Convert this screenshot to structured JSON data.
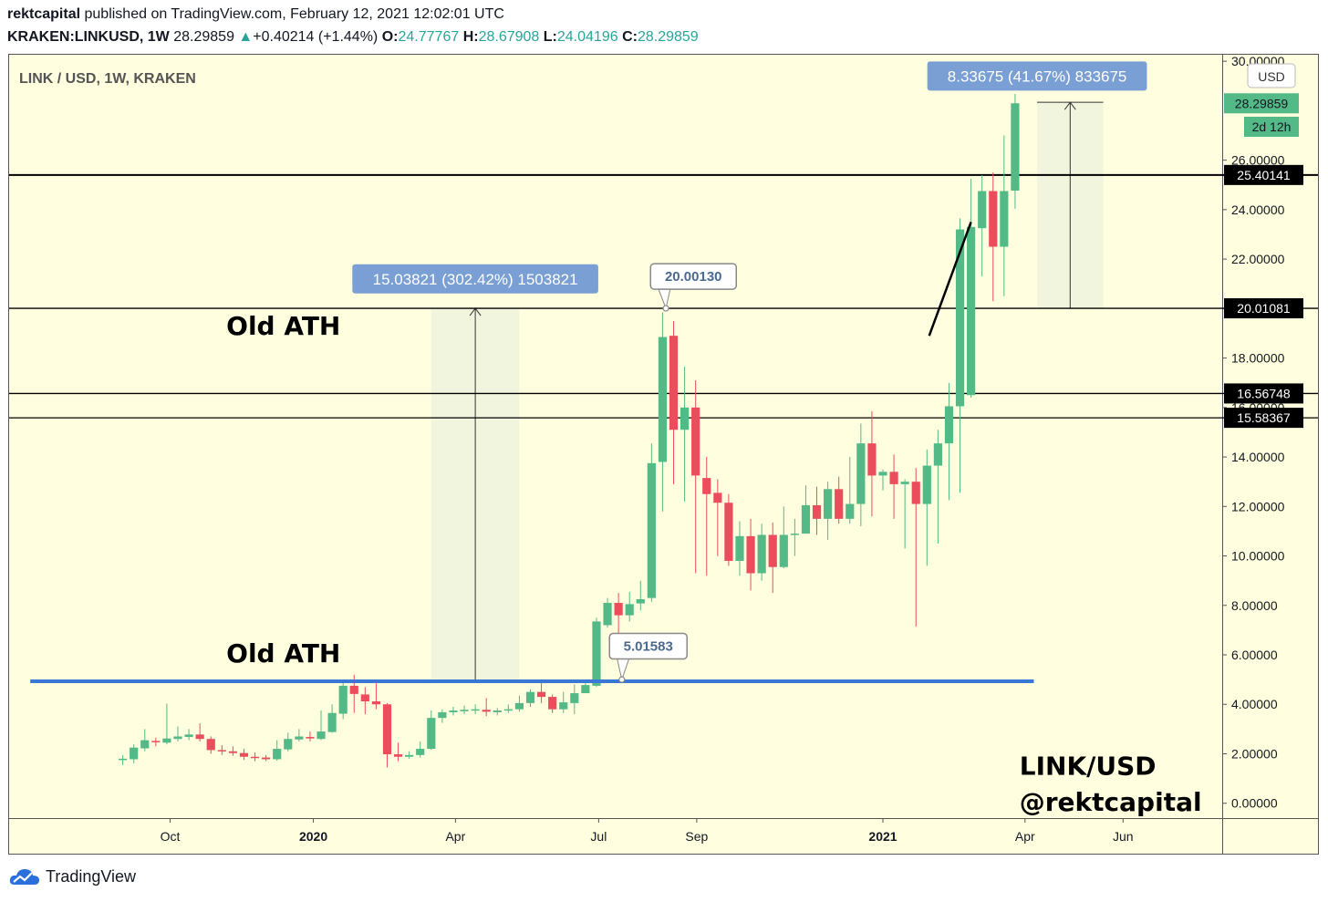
{
  "header": {
    "publisher": "rektcapital",
    "published_text": "published on TradingView.com, February 12, 2021 12:02:01 UTC",
    "symbol": "KRAKEN:LINKUSD, 1W",
    "last": "28.29859",
    "change_arrow": "▲",
    "change": "+0.40214 (+1.44%)",
    "o_label": "O:",
    "o": "24.77767",
    "h_label": "H:",
    "h": "28.67908",
    "l_label": "L:",
    "l": "24.04196",
    "c_label": "C:",
    "c": "28.29859"
  },
  "footer": {
    "brand": "TradingView",
    "icon": "tradingview-cloud-icon"
  },
  "chart_data": {
    "type": "candlestick",
    "pane_title": "LINK / USD, 1W, KRAKEN",
    "currency": "USD",
    "y_ticks": [
      "0.00000",
      "2.00000",
      "4.00000",
      "6.00000",
      "8.00000",
      "10.00000",
      "12.00000",
      "14.00000",
      "16.00000",
      "18.00000",
      "20.00000",
      "22.00000",
      "24.00000",
      "26.00000",
      "30.00000"
    ],
    "y_range": [
      -0.6,
      30.3
    ],
    "x_ticks": [
      {
        "label": "Oct",
        "t": 4.3,
        "bold": false
      },
      {
        "label": "2020",
        "t": 17.3,
        "bold": true
      },
      {
        "label": "Apr",
        "t": 30.2,
        "bold": false
      },
      {
        "label": "Jul",
        "t": 43.2,
        "bold": false
      },
      {
        "label": "Sep",
        "t": 52.1,
        "bold": false
      },
      {
        "label": "2021",
        "t": 69.0,
        "bold": true
      },
      {
        "label": "Apr",
        "t": 81.9,
        "bold": false
      },
      {
        "label": "Jun",
        "t": 90.8,
        "bold": false
      }
    ],
    "x_range": [
      -10.4,
      99.8
    ],
    "colors": {
      "up": "#53b987",
      "down": "#eb4d5c",
      "background": "#ffffe0",
      "hline": "#000000",
      "blue_line": "#3a78d6",
      "label_box": "#7a9fd4"
    },
    "candles": [
      [
        1.78,
        1.8,
        1.95,
        1.55
      ],
      [
        1.78,
        2.25,
        2.38,
        1.62
      ],
      [
        2.22,
        2.55,
        3.0,
        2.1
      ],
      [
        2.52,
        2.48,
        2.65,
        2.3
      ],
      [
        2.45,
        2.62,
        4.03,
        2.38
      ],
      [
        2.6,
        2.7,
        3.1,
        2.5
      ],
      [
        2.68,
        2.78,
        3.0,
        2.55
      ],
      [
        2.78,
        2.6,
        3.23,
        2.5
      ],
      [
        2.6,
        2.15,
        2.7,
        2.0
      ],
      [
        2.15,
        2.1,
        2.35,
        1.95
      ],
      [
        2.1,
        2.03,
        2.3,
        1.92
      ],
      [
        2.03,
        1.88,
        2.2,
        1.75
      ],
      [
        1.88,
        1.85,
        2.05,
        1.7
      ],
      [
        1.85,
        1.78,
        1.95,
        1.7
      ],
      [
        1.78,
        2.2,
        2.55,
        1.72
      ],
      [
        2.18,
        2.6,
        2.85,
        2.1
      ],
      [
        2.58,
        2.7,
        3.0,
        2.5
      ],
      [
        2.68,
        2.62,
        2.9,
        2.5
      ],
      [
        2.6,
        2.9,
        3.75,
        2.55
      ],
      [
        2.88,
        3.65,
        4.0,
        2.85
      ],
      [
        3.62,
        4.75,
        4.95,
        3.4
      ],
      [
        4.75,
        4.42,
        5.2,
        3.65
      ],
      [
        4.4,
        4.12,
        4.7,
        3.6
      ],
      [
        4.12,
        4.0,
        4.85,
        3.8
      ],
      [
        4.0,
        1.98,
        4.05,
        1.45
      ],
      [
        1.98,
        1.88,
        2.45,
        1.7
      ],
      [
        1.88,
        1.95,
        2.1,
        1.8
      ],
      [
        1.95,
        2.2,
        2.5,
        1.85
      ],
      [
        2.2,
        3.45,
        3.75,
        2.15
      ],
      [
        3.45,
        3.68,
        3.8,
        3.25
      ],
      [
        3.68,
        3.75,
        3.9,
        3.55
      ],
      [
        3.72,
        3.78,
        3.95,
        3.6
      ],
      [
        3.75,
        3.8,
        4.0,
        3.6
      ],
      [
        3.78,
        3.7,
        4.25,
        3.52
      ],
      [
        3.68,
        3.75,
        3.85,
        3.55
      ],
      [
        3.75,
        3.8,
        4.0,
        3.65
      ],
      [
        3.8,
        4.05,
        4.35,
        3.7
      ],
      [
        4.05,
        4.5,
        4.6,
        3.9
      ],
      [
        4.5,
        4.3,
        4.95,
        4.05
      ],
      [
        4.3,
        3.8,
        4.4,
        3.65
      ],
      [
        3.8,
        4.08,
        4.5,
        3.65
      ],
      [
        4.05,
        4.45,
        4.8,
        3.6
      ],
      [
        4.45,
        4.78,
        5.0,
        4.5
      ],
      [
        4.75,
        7.35,
        7.5,
        4.7
      ],
      [
        7.2,
        8.1,
        8.3,
        7.1
      ],
      [
        8.1,
        7.6,
        8.5,
        6.4
      ],
      [
        7.6,
        8.05,
        8.55,
        7.35
      ],
      [
        8.08,
        8.25,
        9.0,
        7.8
      ],
      [
        8.3,
        13.75,
        14.55,
        8.15
      ],
      [
        13.8,
        18.85,
        19.85,
        11.8
      ],
      [
        18.9,
        15.1,
        19.5,
        12.9
      ],
      [
        15.1,
        16.0,
        17.65,
        12.2
      ],
      [
        16.0,
        13.25,
        17.1,
        9.3
      ],
      [
        13.15,
        12.5,
        14.0,
        9.2
      ],
      [
        12.55,
        12.15,
        13.1,
        10.0
      ],
      [
        12.15,
        9.8,
        12.5,
        9.6
      ],
      [
        9.8,
        10.8,
        11.4,
        9.2
      ],
      [
        10.8,
        9.3,
        11.5,
        8.6
      ],
      [
        9.3,
        10.85,
        11.3,
        9.0
      ],
      [
        10.85,
        9.55,
        11.35,
        8.5
      ],
      [
        9.55,
        10.85,
        12.0,
        9.5
      ],
      [
        10.85,
        10.9,
        11.5,
        10.0
      ],
      [
        10.9,
        12.05,
        12.85,
        10.9
      ],
      [
        12.05,
        11.5,
        12.8,
        10.85
      ],
      [
        11.5,
        12.7,
        13.0,
        10.65
      ],
      [
        12.7,
        11.5,
        13.2,
        11.3
      ],
      [
        11.5,
        12.1,
        14.0,
        11.3
      ],
      [
        12.1,
        14.55,
        15.35,
        11.2
      ],
      [
        14.55,
        13.25,
        15.85,
        11.6
      ],
      [
        13.25,
        13.4,
        13.5,
        12.65
      ],
      [
        13.4,
        12.9,
        14.1,
        11.5
      ],
      [
        12.9,
        13.0,
        13.1,
        10.3
      ],
      [
        13.0,
        12.1,
        13.55,
        7.15
      ],
      [
        12.1,
        13.65,
        14.3,
        9.6
      ],
      [
        13.65,
        14.55,
        15.1,
        10.5
      ],
      [
        14.55,
        16.05,
        17.0,
        12.25
      ],
      [
        16.05,
        23.2,
        23.65,
        12.55
      ],
      [
        16.5,
        23.3,
        25.25,
        16.4
      ],
      [
        23.25,
        24.75,
        25.4,
        21.3
      ],
      [
        24.75,
        22.5,
        25.5,
        20.3
      ],
      [
        22.5,
        24.75,
        27.0,
        20.5
      ],
      [
        24.77,
        28.3,
        28.68,
        24.04
      ]
    ],
    "price_lines": [
      25.40141,
      20.01081,
      16.56748,
      15.58367
    ],
    "blue_line": {
      "price": 4.93,
      "t_from": -8.4,
      "t_to": 82.7
    },
    "price_labels": [
      {
        "text": "28.29859",
        "price": 28.29859,
        "style": "last"
      },
      {
        "text": "2d 12h",
        "price": 27.35,
        "style": "last-sub"
      },
      {
        "text": "25.40141",
        "price": 25.40141,
        "style": "black"
      },
      {
        "text": "20.01081",
        "price": 20.01081,
        "style": "black"
      },
      {
        "text": "16.56748",
        "price": 16.56748,
        "style": "black"
      },
      {
        "text": "15.58367",
        "price": 15.58367,
        "style": "black"
      }
    ],
    "measures": [
      {
        "t_from": 28.0,
        "t_to": 36.0,
        "p_from": 4.97,
        "p_to": 20.01,
        "arrow_t": 32.0,
        "label": "15.03821 (302.42%) 1503821",
        "label_t": 32.0,
        "label_price": 21.2
      },
      {
        "t_from": 83.0,
        "t_to": 89.0,
        "p_from": 20.01,
        "p_to": 28.34,
        "arrow_t": 86.0,
        "label": "8.33675 (41.67%) 833675",
        "label_t": 83.0,
        "label_price": 29.4
      }
    ],
    "callouts": [
      {
        "text": "20.00130",
        "t": 49.3,
        "price": 20.01,
        "box_t": 51.8,
        "box_price": 21.3
      },
      {
        "text": "5.01583",
        "t": 45.3,
        "price": 5.0,
        "box_t": 47.7,
        "box_price": 6.35
      }
    ],
    "annotations": [
      {
        "text": "Old ATH",
        "t": 9.4,
        "price": 18.95
      },
      {
        "text": "Old ATH",
        "t": 9.4,
        "price": 5.7
      },
      {
        "text": "LINK/USD",
        "t": 81.4,
        "price": 1.15
      },
      {
        "text": "@rektcapital",
        "t": 81.4,
        "price": -0.3
      }
    ],
    "trendline": {
      "t_from": 73.2,
      "p_from": 18.9,
      "t_to": 77.0,
      "p_to": 23.5
    }
  }
}
